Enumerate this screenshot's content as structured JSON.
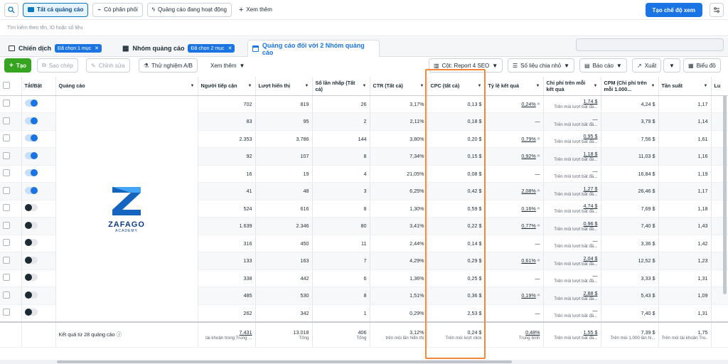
{
  "topbar": {
    "filters": [
      "Tất cả quảng cáo",
      "Có phân phối",
      "Quảng cáo đang hoạt động"
    ],
    "more": "Xem thêm",
    "create_view": "Tạo chế độ xem"
  },
  "search": {
    "placeholder": "Tìm kiếm theo tên, ID hoặc số liệu"
  },
  "tabs": {
    "campaign": "Chiến dịch",
    "campaign_chip": "Đã chọn 1 mục",
    "adset": "Nhóm quảng cáo",
    "adset_chip": "Đã chọn 2 mục",
    "ads": "Quảng cáo đối với 2 Nhóm quảng cáo"
  },
  "toolbar": {
    "create": "Tạo",
    "duplicate": "Sao chép",
    "edit": "Chỉnh sửa",
    "ab_test": "Thử nghiệm A/B",
    "more": "Xem thêm",
    "columns": "Cột: Report 4 SEO",
    "breakdown": "Số liệu chia nhỏ",
    "reports": "Báo cáo",
    "export": "Xuất",
    "charts": "Biểu đồ"
  },
  "table": {
    "headers": [
      "Tắt/Bật",
      "Quảng cáo",
      "Người tiếp cận",
      "Lượt hiển thị",
      "Số lần nhấp (Tất cả)",
      "CTR (Tất cả)",
      "CPC (tất cả)",
      "Tỷ lệ kết quả",
      "Chi phí trên mỗi kết quả",
      "CPM (Chi phí trên mỗi 1.000...",
      "Tần suất",
      "Lu"
    ],
    "cost_per_result_sub": "Trên mỗi lượt bắt đầ...",
    "rows": [
      {
        "on": true,
        "reach": "702",
        "impr": "819",
        "clicks": "26",
        "ctr": "3,17%",
        "cpc": "0,13 $",
        "rate": "0,24%",
        "cost": "1,74 $",
        "cpm": "4,24 $",
        "freq": "1,17"
      },
      {
        "on": true,
        "reach": "83",
        "impr": "95",
        "clicks": "2",
        "ctr": "2,11%",
        "cpc": "0,18 $",
        "rate": "—",
        "cost": "—",
        "cpm": "3,79 $",
        "freq": "1,14"
      },
      {
        "on": true,
        "reach": "2.353",
        "impr": "3.786",
        "clicks": "144",
        "ctr": "3,80%",
        "cpc": "0,20 $",
        "rate": "0,79%",
        "cost": "0,95 $",
        "cpm": "7,56 $",
        "freq": "1,61"
      },
      {
        "on": true,
        "reach": "92",
        "impr": "107",
        "clicks": "8",
        "ctr": "7,34%",
        "cpc": "0,15 $",
        "rate": "0,92%",
        "cost": "1,18 $",
        "cpm": "11,03 $",
        "freq": "1,16"
      },
      {
        "on": true,
        "reach": "16",
        "impr": "19",
        "clicks": "4",
        "ctr": "21,05%",
        "cpc": "0,08 $",
        "rate": "—",
        "cost": "—",
        "cpm": "16,84 $",
        "freq": "1,19"
      },
      {
        "on": true,
        "reach": "41",
        "impr": "48",
        "clicks": "3",
        "ctr": "6,25%",
        "cpc": "0,42 $",
        "rate": "2,08%",
        "cost": "1,27 $",
        "cpm": "26,46 $",
        "freq": "1,17"
      },
      {
        "on": false,
        "reach": "524",
        "impr": "616",
        "clicks": "8",
        "ctr": "1,30%",
        "cpc": "0,59 $",
        "rate": "0,16%",
        "cost": "4,74 $",
        "cpm": "7,69 $",
        "freq": "1,18"
      },
      {
        "on": false,
        "reach": "1.639",
        "impr": "2.346",
        "clicks": "80",
        "ctr": "3,41%",
        "cpc": "0,22 $",
        "rate": "0,77%",
        "cost": "0,96 $",
        "cpm": "7,40 $",
        "freq": "1,43"
      },
      {
        "on": false,
        "reach": "316",
        "impr": "450",
        "clicks": "11",
        "ctr": "2,44%",
        "cpc": "0,14 $",
        "rate": "—",
        "cost": "—",
        "cpm": "3,36 $",
        "freq": "1,42"
      },
      {
        "on": false,
        "reach": "133",
        "impr": "163",
        "clicks": "7",
        "ctr": "4,29%",
        "cpc": "0,29 $",
        "rate": "0,61%",
        "cost": "2,04 $",
        "cpm": "12,52 $",
        "freq": "1,23"
      },
      {
        "on": false,
        "reach": "338",
        "impr": "442",
        "clicks": "6",
        "ctr": "1,36%",
        "cpc": "0,25 $",
        "rate": "—",
        "cost": "—",
        "cpm": "3,33 $",
        "freq": "1,31"
      },
      {
        "on": false,
        "reach": "485",
        "impr": "530",
        "clicks": "8",
        "ctr": "1,51%",
        "cpc": "0,36 $",
        "rate": "0,19%",
        "cost": "2,88 $",
        "cpm": "5,43 $",
        "freq": "1,09"
      },
      {
        "on": false,
        "reach": "262",
        "impr": "342",
        "clicks": "1",
        "ctr": "0,29%",
        "cpc": "2,53 $",
        "rate": "—",
        "cost": "—",
        "cpm": "7,40 $",
        "freq": "1,31"
      }
    ],
    "footer": {
      "label": "Kết quả từ 28 quảng cáo",
      "reach": "7.431",
      "reach_sub": "tài khoản trong Trung ...",
      "impr": "13.018",
      "impr_sub": "Tổng",
      "clicks": "406",
      "clicks_sub": "Tổng",
      "ctr": "3,12%",
      "ctr_sub": "trên mỗi lần hiển thị",
      "cpc": "0,24 $",
      "cpc_sub": "Trên mỗi lượt click",
      "rate": "0,48%",
      "rate_sub": "Trung bình",
      "cost": "1,55 $",
      "cost_sub": "Trên mỗi lượt bắt đầ...",
      "cpm": "7,39 $",
      "cpm_sub": "Trên mỗi 1.000 lần hi...",
      "freq": "1,75",
      "freq_sub": "Trên mỗi tài khoản Tru..."
    }
  },
  "logo": {
    "brand": "ZAFAGO",
    "tagline": "ACADEMY"
  },
  "colors": {
    "accent": "#1b74e4",
    "create_green": "#36a420",
    "highlight": "#f3873a"
  }
}
